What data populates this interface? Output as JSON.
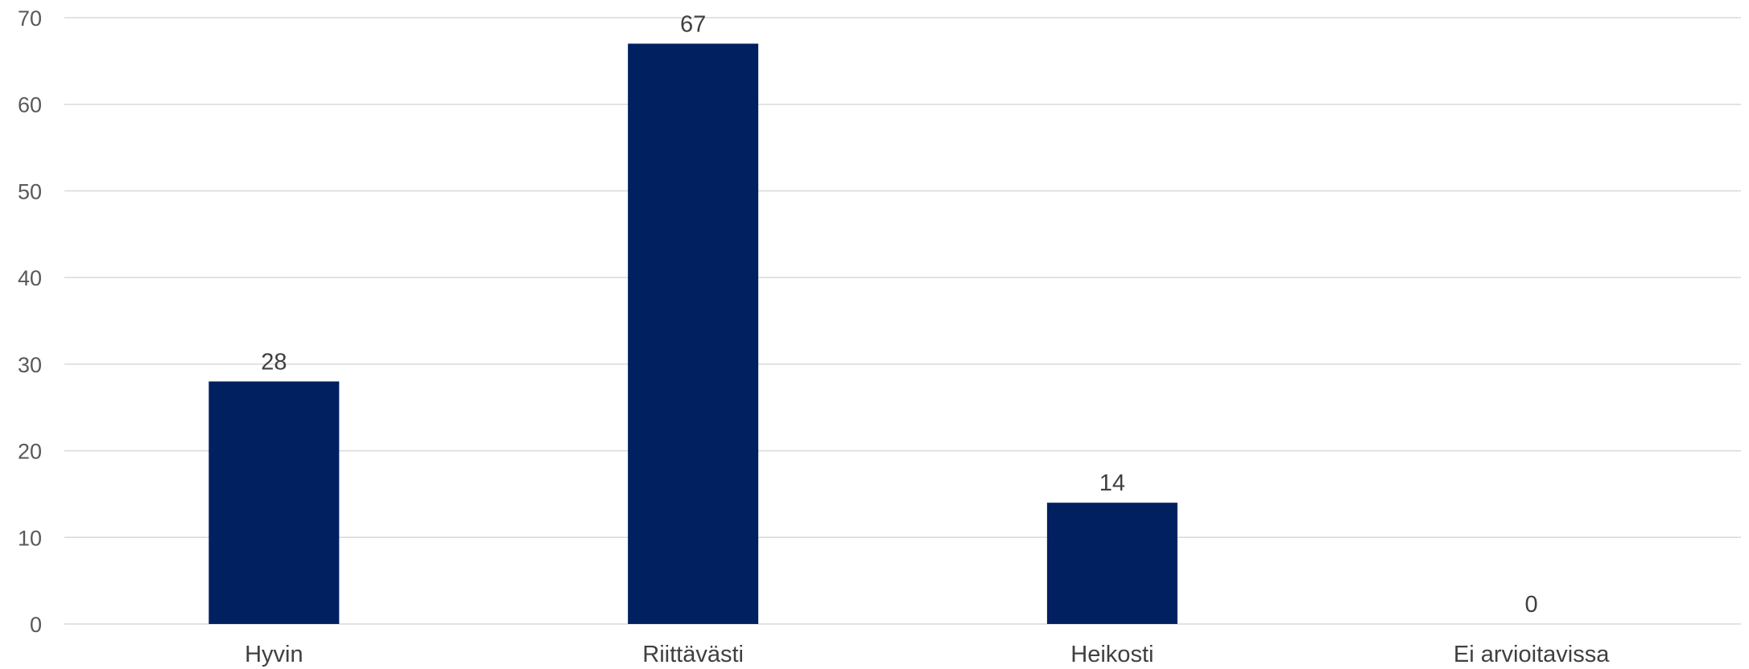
{
  "chart_data": {
    "type": "bar",
    "categories": [
      "Hyvin",
      "Riittävästi",
      "Heikosti",
      "Ei arvioitavissa"
    ],
    "values": [
      28,
      67,
      14,
      0
    ],
    "data_labels": [
      "28",
      "67",
      "14",
      "0"
    ],
    "ylim": [
      0,
      70
    ],
    "yticks": [
      0,
      10,
      20,
      30,
      40,
      50,
      60,
      70
    ],
    "ytick_labels": [
      "0",
      "10",
      "20",
      "30",
      "40",
      "50",
      "60",
      "70"
    ],
    "grid": true,
    "legend": "none",
    "colors": {
      "bar": "#002060",
      "grid": "#d9d9d9",
      "axis": "#d9d9d9"
    }
  }
}
